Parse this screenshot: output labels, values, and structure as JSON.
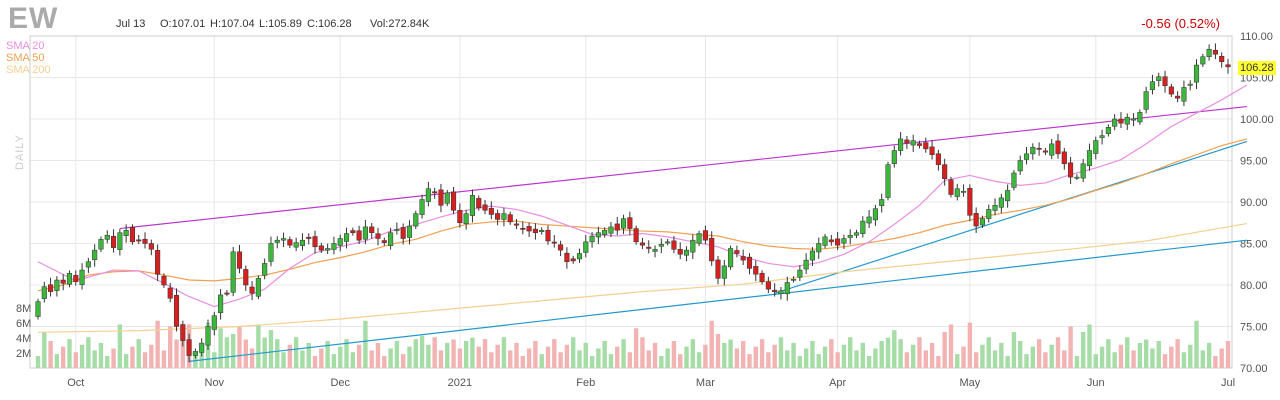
{
  "header": {
    "ticker": "EW",
    "date": "Jul 13",
    "open": "O:107.01",
    "high": "H:107.04",
    "low": "L:105.89",
    "close": "C:106.28",
    "volume": "Vol:272.84K",
    "change": "-0.56 (0.52%)"
  },
  "legend": {
    "sma20": "SMA 20",
    "sma50": "SMA 50",
    "sma200": "SMA 200",
    "period": "DAILY"
  },
  "last_price_label": "106.28",
  "colors": {
    "up": "#3cb63c",
    "down": "#d42020",
    "vol_up": "#a6dca6",
    "vol_down": "#f2b3b3",
    "sma20": "#e98ee3",
    "sma50": "#f0a050",
    "sma200": "#f5d090",
    "trend_upper": "#bb33cc",
    "trend_lower": "#2299cc",
    "grid": "#e8e8e8"
  },
  "chart_data": {
    "type": "candlestick",
    "title": "EW",
    "ylim": [
      70,
      110
    ],
    "y_ticks": [
      110,
      105,
      100,
      95,
      90,
      85,
      80,
      75,
      70
    ],
    "y_tick_labels": [
      "110.00",
      "105.00",
      "100.00",
      "95.00",
      "90.00",
      "85.00",
      "80.00",
      "75.00",
      "70.00"
    ],
    "volume_ticks": [
      8,
      6,
      4,
      2
    ],
    "volume_tick_labels": [
      "8M",
      "6M",
      "4M",
      "2M"
    ],
    "volume_max_m": 10,
    "x_labels": [
      {
        "index": 6,
        "label": "Oct"
      },
      {
        "index": 28,
        "label": "Nov"
      },
      {
        "index": 48,
        "label": "Dec"
      },
      {
        "index": 67,
        "label": "2021"
      },
      {
        "index": 87,
        "label": "Feb"
      },
      {
        "index": 106,
        "label": "Mar"
      },
      {
        "index": 127,
        "label": "Apr"
      },
      {
        "index": 148,
        "label": "May"
      },
      {
        "index": 168,
        "label": "Jun"
      },
      {
        "index": 189,
        "label": "Jul"
      }
    ],
    "candles_close": [
      78.0,
      79.8,
      79.2,
      80.6,
      80.2,
      81.4,
      80.4,
      81.8,
      82.8,
      84.2,
      85.5,
      86.0,
      84.5,
      86.3,
      86.6,
      85.2,
      85.4,
      85.0,
      84.3,
      81.3,
      80.0,
      78.4,
      75.0,
      73.3,
      71.5,
      72.0,
      73.0,
      75.0,
      76.3,
      78.8,
      79.0,
      84.0,
      82.0,
      80.0,
      79.0,
      80.8,
      82.6,
      85.0,
      85.4,
      85.6,
      84.8,
      85.1,
      85.4,
      85.6,
      84.6,
      84.2,
      84.4,
      85.0,
      85.6,
      86.2,
      86.3,
      85.4,
      87.0,
      86.3,
      85.6,
      85.1,
      86.3,
      86.7,
      85.6,
      87.1,
      88.6,
      90.3,
      91.6,
      91.1,
      89.6,
      91.1,
      89.0,
      87.5,
      88.6,
      90.8,
      89.3,
      89.0,
      88.5,
      87.9,
      88.6,
      87.6,
      87.2,
      86.7,
      86.5,
      86.3,
      86.6,
      85.3,
      85.1,
      84.2,
      82.8,
      82.9,
      83.8,
      85.2,
      85.9,
      86.3,
      86.6,
      87.0,
      86.6,
      88.0,
      86.8,
      85.2,
      84.8,
      84.4,
      84.3,
      84.9,
      85.2,
      84.3,
      83.7,
      84.2,
      85.4,
      86.2,
      85.4,
      82.9,
      80.8,
      82.3,
      84.4,
      83.8,
      83.0,
      82.0,
      81.3,
      80.4,
      79.5,
      79.2,
      79.3,
      80.3,
      80.7,
      81.8,
      83.0,
      84.1,
      85.0,
      85.8,
      85.2,
      84.8,
      85.6,
      86.0,
      86.3,
      87.7,
      88.2,
      89.2,
      90.3,
      94.5,
      96.2,
      97.6,
      97.1,
      97.4,
      96.8,
      96.4,
      95.7,
      94.5,
      92.8,
      90.9,
      91.6,
      91.3,
      88.4,
      87.1,
      88.0,
      89.1,
      89.6,
      90.5,
      91.4,
      93.5,
      95.0,
      95.8,
      96.6,
      96.4,
      96.0,
      97.0,
      95.8,
      94.6,
      93.0,
      93.0,
      94.6,
      96.2,
      97.4,
      98.0,
      99.0,
      100.0,
      99.5,
      100.2,
      100.0,
      100.8,
      103.3,
      104.5,
      105.1,
      104.0,
      103.0,
      102.5,
      103.8,
      104.2,
      106.5,
      107.5,
      108.4,
      107.8,
      106.9,
      106.28
    ],
    "sma20_anchor_points": [
      [
        0,
        82.8
      ],
      [
        6,
        80.5
      ],
      [
        12,
        81.8
      ],
      [
        16,
        81.7
      ],
      [
        20,
        80.2
      ],
      [
        24,
        78.6
      ],
      [
        28,
        77.4
      ],
      [
        32,
        78.3
      ],
      [
        36,
        79.5
      ],
      [
        40,
        82.0
      ],
      [
        44,
        83.9
      ],
      [
        48,
        84.6
      ],
      [
        52,
        85.3
      ],
      [
        56,
        86.5
      ],
      [
        60,
        87.3
      ],
      [
        64,
        88.2
      ],
      [
        68,
        89.0
      ],
      [
        72,
        89.5
      ],
      [
        76,
        89.1
      ],
      [
        80,
        88.3
      ],
      [
        84,
        87.2
      ],
      [
        88,
        86.1
      ],
      [
        92,
        85.9
      ],
      [
        96,
        86.2
      ],
      [
        100,
        85.8
      ],
      [
        104,
        85.2
      ],
      [
        108,
        84.6
      ],
      [
        112,
        83.4
      ],
      [
        116,
        82.6
      ],
      [
        120,
        82.2
      ],
      [
        124,
        82.7
      ],
      [
        128,
        83.7
      ],
      [
        132,
        85.2
      ],
      [
        136,
        87.3
      ],
      [
        140,
        89.6
      ],
      [
        144,
        92.6
      ],
      [
        148,
        93.2
      ],
      [
        152,
        92.5
      ],
      [
        156,
        92.0
      ],
      [
        160,
        92.3
      ],
      [
        164,
        93.3
      ],
      [
        168,
        94.1
      ],
      [
        172,
        95.1
      ],
      [
        176,
        97.0
      ],
      [
        180,
        99.1
      ],
      [
        184,
        100.7
      ],
      [
        188,
        102.3
      ],
      [
        192,
        104.1
      ]
    ],
    "sma50_anchor_points": [
      [
        0,
        79.3
      ],
      [
        4,
        80.0
      ],
      [
        8,
        81.2
      ],
      [
        12,
        81.6
      ],
      [
        16,
        81.7
      ],
      [
        20,
        81.2
      ],
      [
        24,
        80.6
      ],
      [
        28,
        80.5
      ],
      [
        32,
        80.8
      ],
      [
        36,
        81.2
      ],
      [
        40,
        81.9
      ],
      [
        44,
        82.7
      ],
      [
        48,
        83.3
      ],
      [
        52,
        84.0
      ],
      [
        56,
        84.9
      ],
      [
        60,
        85.5
      ],
      [
        64,
        86.5
      ],
      [
        68,
        87.3
      ],
      [
        72,
        87.6
      ],
      [
        76,
        87.7
      ],
      [
        80,
        87.3
      ],
      [
        84,
        87.1
      ],
      [
        88,
        86.9
      ],
      [
        92,
        86.7
      ],
      [
        96,
        86.5
      ],
      [
        100,
        86.4
      ],
      [
        104,
        86.1
      ],
      [
        108,
        85.9
      ],
      [
        112,
        85.2
      ],
      [
        116,
        84.7
      ],
      [
        120,
        84.4
      ],
      [
        124,
        84.3
      ],
      [
        128,
        84.6
      ],
      [
        132,
        85.1
      ],
      [
        136,
        85.6
      ],
      [
        140,
        86.3
      ],
      [
        144,
        87.2
      ],
      [
        148,
        87.8
      ],
      [
        152,
        88.5
      ],
      [
        156,
        89.0
      ],
      [
        160,
        89.6
      ],
      [
        164,
        90.4
      ],
      [
        168,
        91.4
      ],
      [
        172,
        92.3
      ],
      [
        176,
        93.4
      ],
      [
        180,
        94.6
      ],
      [
        184,
        95.7
      ],
      [
        188,
        96.8
      ],
      [
        192,
        97.6
      ]
    ],
    "sma200_anchor_points": [
      [
        0,
        74.3
      ],
      [
        16,
        74.5
      ],
      [
        32,
        75.0
      ],
      [
        48,
        75.9
      ],
      [
        64,
        77.0
      ],
      [
        80,
        78.1
      ],
      [
        96,
        79.2
      ],
      [
        112,
        80.1
      ],
      [
        128,
        81.6
      ],
      [
        144,
        82.8
      ],
      [
        160,
        84.0
      ],
      [
        176,
        85.3
      ],
      [
        192,
        87.4
      ]
    ],
    "trendlines": [
      {
        "name": "upper",
        "from": [
          13,
          86.8
        ],
        "to": [
          192,
          101.5
        ]
      },
      {
        "name": "lower-steep",
        "from": [
          117,
          79.0
        ],
        "to": [
          192,
          97.3
        ]
      },
      {
        "name": "lower-long",
        "from": [
          24,
          70.8
        ],
        "to": [
          192,
          85.4
        ]
      }
    ]
  }
}
